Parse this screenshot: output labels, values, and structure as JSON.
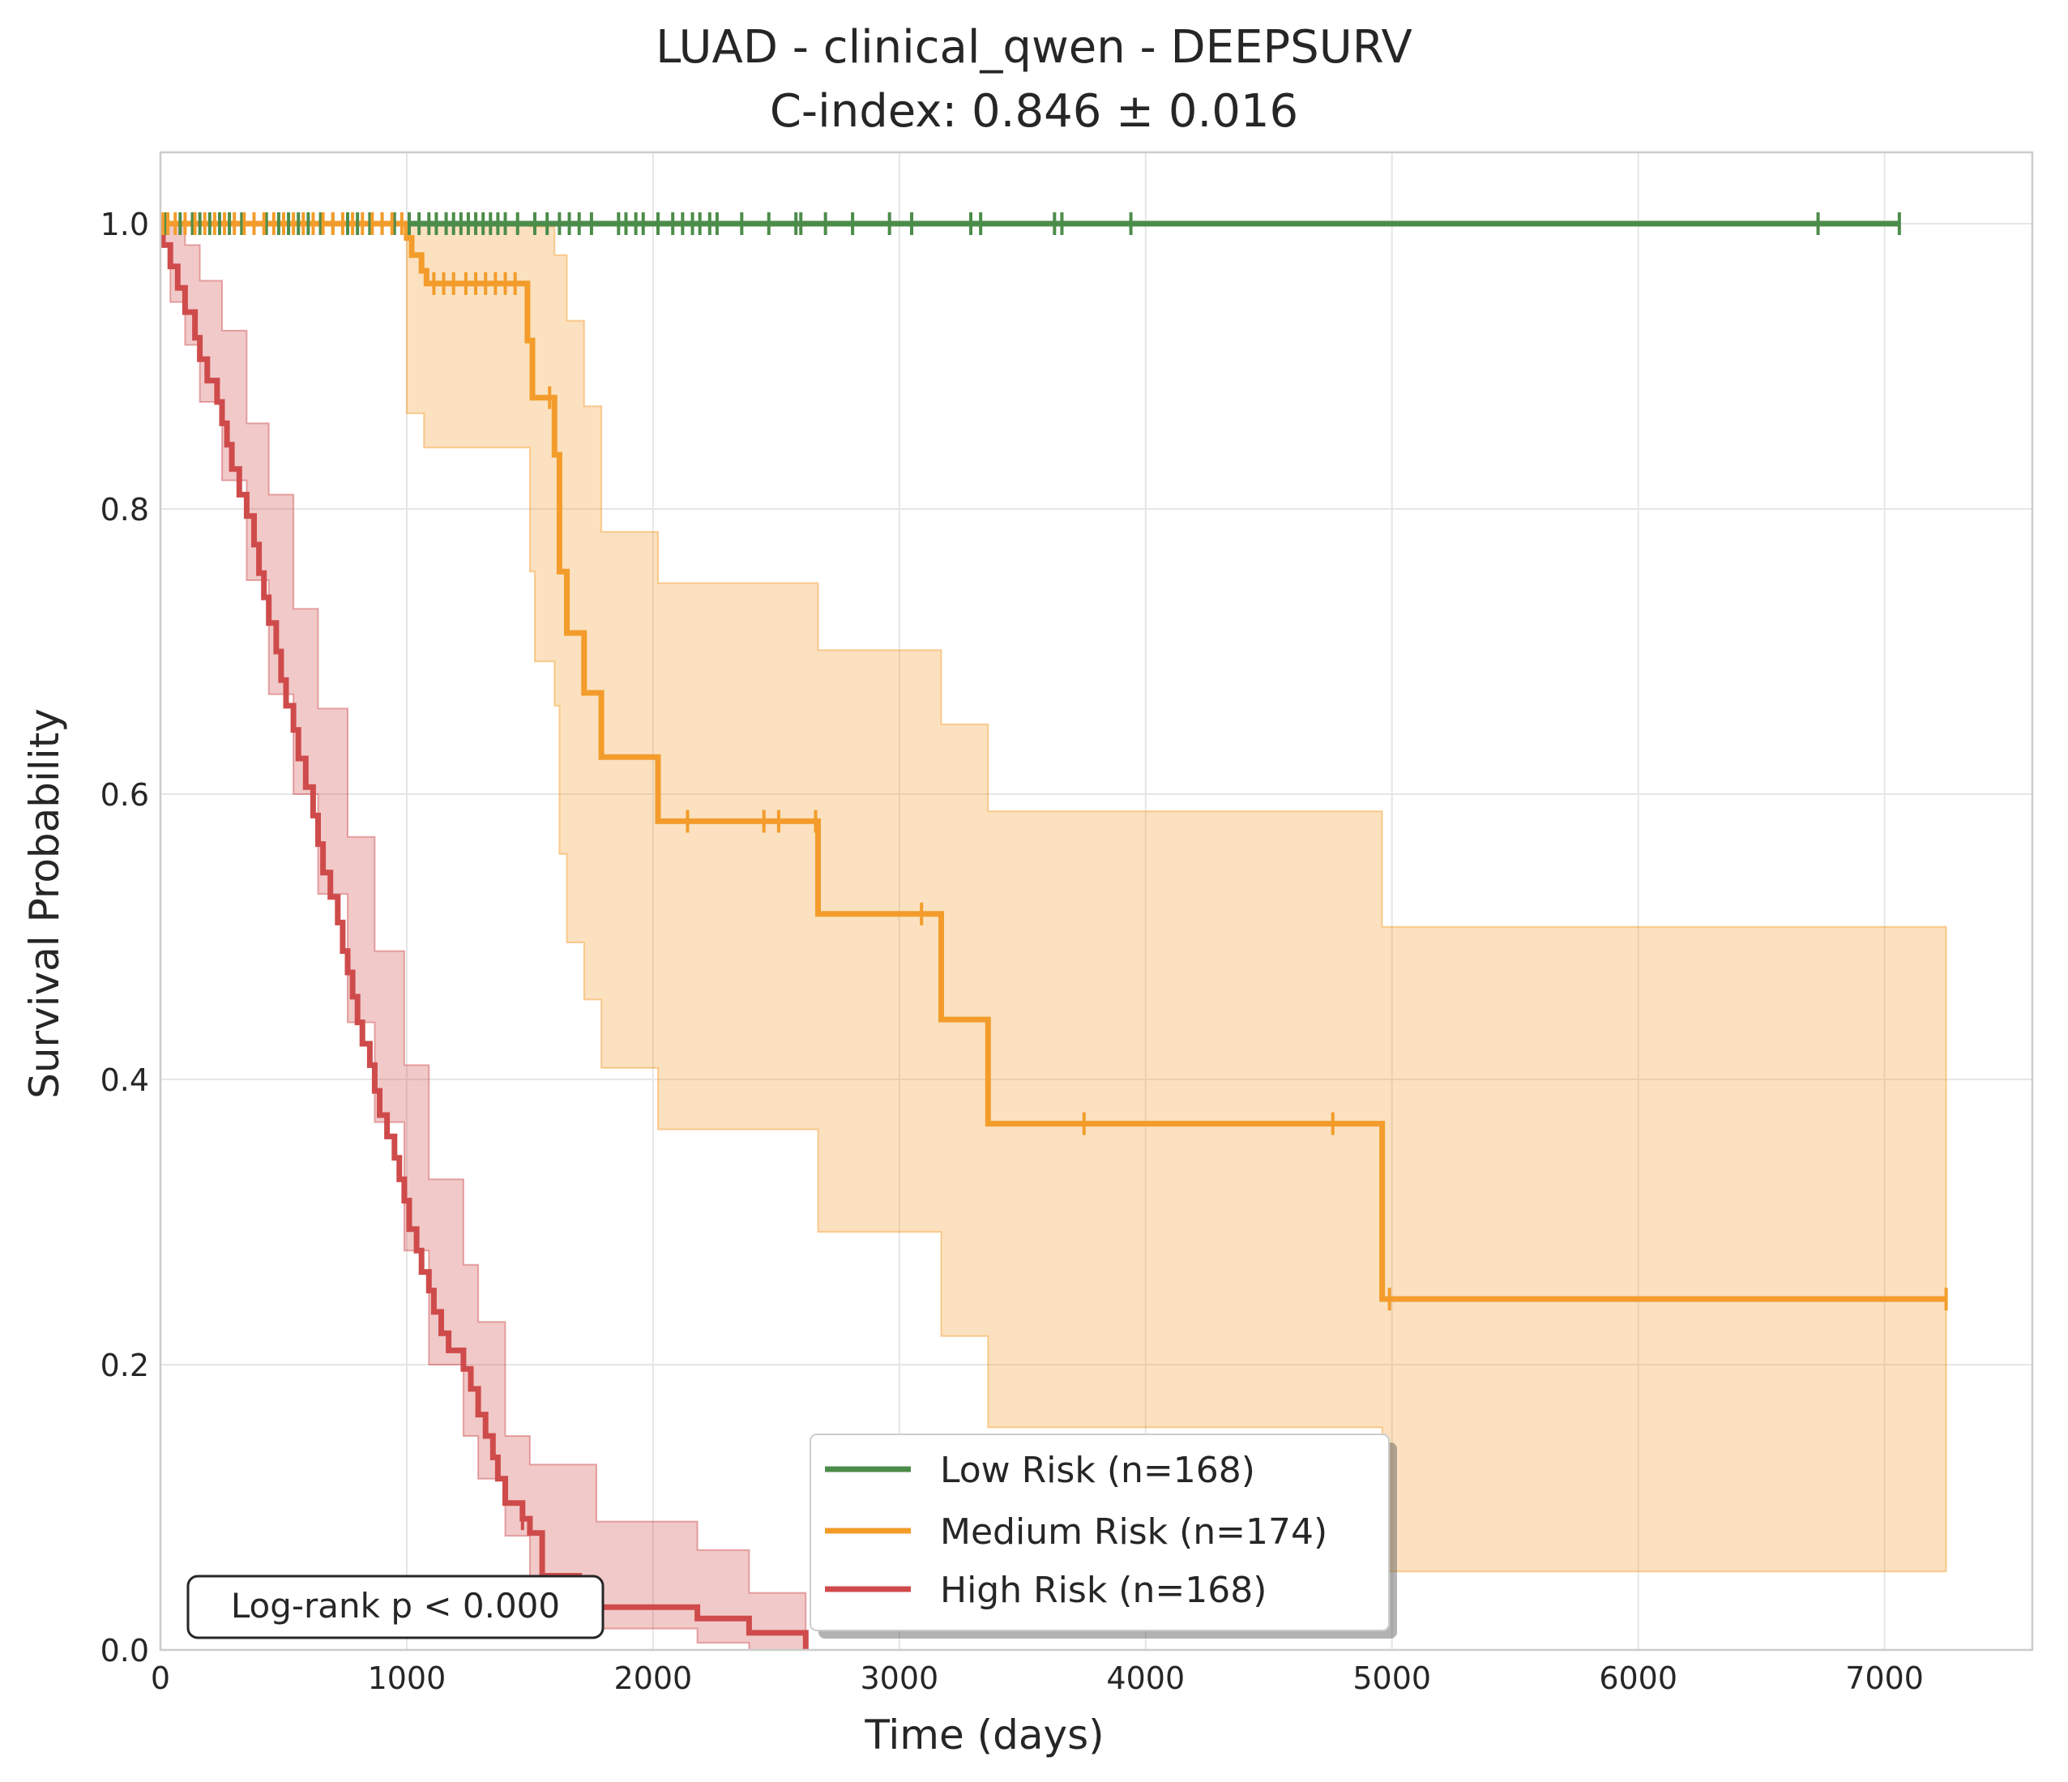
{
  "chart_data": {
    "type": "line",
    "subtype": "kaplan-meier",
    "title": "LUAD - clinical_qwen - DEEPSURV",
    "subtitle": "C-index: 0.846 ± 0.016",
    "xlabel": "Time (days)",
    "ylabel": "Survival Probability",
    "xlim": [
      0,
      7600
    ],
    "ylim": [
      0,
      1.05
    ],
    "xticks": [
      0,
      1000,
      2000,
      3000,
      4000,
      5000,
      6000,
      7000
    ],
    "yticks": [
      0.0,
      0.2,
      0.4,
      0.6,
      0.8,
      1.0
    ],
    "xtick_labels": [
      "0",
      "1000",
      "2000",
      "3000",
      "4000",
      "5000",
      "6000",
      "7000"
    ],
    "ytick_labels": [
      "0.0",
      "0.2",
      "0.4",
      "0.6",
      "0.8",
      "1.0"
    ],
    "grid": true,
    "legend_position": "bottom-center",
    "annotation": "Log-rank p < 0.000",
    "series": [
      {
        "name": "Low Risk (n=168)",
        "color": "#4c8c4a",
        "steps": [
          [
            0,
            1.0
          ],
          [
            7060,
            1.0
          ]
        ],
        "censored": [
          20,
          80,
          130,
          160,
          200,
          240,
          280,
          330,
          380,
          430,
          480,
          520,
          560,
          600,
          650,
          700,
          760,
          800,
          850,
          900,
          950,
          1010,
          1050,
          1090,
          1120,
          1160,
          1190,
          1220,
          1250,
          1280,
          1310,
          1340,
          1370,
          1400,
          1450,
          1520,
          1570,
          1620,
          1660,
          1700,
          1750,
          1860,
          1890,
          1930,
          1960,
          2020,
          2080,
          2120,
          2160,
          2190,
          2230,
          2260,
          2360,
          2470,
          2580,
          2600,
          2700,
          2810,
          2960,
          3050,
          3290,
          3330,
          3630,
          3660,
          3940,
          6730,
          7060
        ]
      },
      {
        "name": "Medium Risk (n=174)",
        "color": "#f39c2b",
        "steps": [
          [
            0,
            1.0
          ],
          [
            1000,
            0.99
          ],
          [
            1020,
            0.978
          ],
          [
            1060,
            0.967
          ],
          [
            1080,
            0.958
          ],
          [
            1490,
            0.918
          ],
          [
            1510,
            0.878
          ],
          [
            1600,
            0.838
          ],
          [
            1620,
            0.756
          ],
          [
            1650,
            0.713
          ],
          [
            1720,
            0.671
          ],
          [
            1790,
            0.626
          ],
          [
            2020,
            0.581
          ],
          [
            2670,
            0.516
          ],
          [
            3170,
            0.442
          ],
          [
            3360,
            0.369
          ],
          [
            4960,
            0.246
          ],
          [
            7250,
            0.246
          ]
        ],
        "ci_upper": [
          [
            0,
            1.0
          ],
          [
            1000,
            1.0
          ],
          [
            1500,
            0.998
          ],
          [
            1600,
            0.978
          ],
          [
            1650,
            0.932
          ],
          [
            1720,
            0.872
          ],
          [
            1790,
            0.784
          ],
          [
            2020,
            0.748
          ],
          [
            2670,
            0.701
          ],
          [
            3170,
            0.649
          ],
          [
            3360,
            0.588
          ],
          [
            4960,
            0.507
          ],
          [
            7250,
            0.507
          ]
        ],
        "ci_lower": [
          [
            0,
            1.0
          ],
          [
            1000,
            0.867
          ],
          [
            1070,
            0.843
          ],
          [
            1500,
            0.756
          ],
          [
            1520,
            0.693
          ],
          [
            1600,
            0.662
          ],
          [
            1620,
            0.558
          ],
          [
            1650,
            0.496
          ],
          [
            1720,
            0.456
          ],
          [
            1790,
            0.408
          ],
          [
            2020,
            0.365
          ],
          [
            2670,
            0.293
          ],
          [
            3170,
            0.22
          ],
          [
            3360,
            0.156
          ],
          [
            4960,
            0.055
          ],
          [
            7250,
            0.055
          ]
        ],
        "censored": [
          10,
          30,
          60,
          100,
          140,
          180,
          220,
          260,
          300,
          340,
          380,
          420,
          460,
          500,
          540,
          580,
          620,
          660,
          700,
          740,
          780,
          820,
          860,
          900,
          940,
          980,
          1110,
          1150,
          1190,
          1240,
          1280,
          1320,
          1360,
          1400,
          1440,
          1580,
          2140,
          2450,
          2510,
          2660,
          3090,
          3750,
          4760,
          4990,
          7250
        ]
      },
      {
        "name": "High Risk (n=168)",
        "color": "#cf4b4b",
        "steps": [
          [
            0,
            1.0
          ],
          [
            10,
            0.985
          ],
          [
            40,
            0.97
          ],
          [
            70,
            0.955
          ],
          [
            100,
            0.938
          ],
          [
            140,
            0.92
          ],
          [
            160,
            0.905
          ],
          [
            190,
            0.89
          ],
          [
            230,
            0.875
          ],
          [
            250,
            0.86
          ],
          [
            270,
            0.845
          ],
          [
            290,
            0.828
          ],
          [
            320,
            0.81
          ],
          [
            350,
            0.795
          ],
          [
            380,
            0.775
          ],
          [
            400,
            0.755
          ],
          [
            420,
            0.738
          ],
          [
            440,
            0.72
          ],
          [
            470,
            0.7
          ],
          [
            490,
            0.68
          ],
          [
            510,
            0.662
          ],
          [
            540,
            0.645
          ],
          [
            560,
            0.625
          ],
          [
            590,
            0.605
          ],
          [
            620,
            0.585
          ],
          [
            640,
            0.565
          ],
          [
            660,
            0.545
          ],
          [
            690,
            0.528
          ],
          [
            720,
            0.51
          ],
          [
            740,
            0.49
          ],
          [
            760,
            0.475
          ],
          [
            780,
            0.458
          ],
          [
            800,
            0.44
          ],
          [
            820,
            0.425
          ],
          [
            850,
            0.41
          ],
          [
            870,
            0.392
          ],
          [
            890,
            0.375
          ],
          [
            920,
            0.36
          ],
          [
            950,
            0.345
          ],
          [
            970,
            0.33
          ],
          [
            990,
            0.315
          ],
          [
            1010,
            0.295
          ],
          [
            1040,
            0.28
          ],
          [
            1060,
            0.265
          ],
          [
            1090,
            0.252
          ],
          [
            1110,
            0.237
          ],
          [
            1140,
            0.222
          ],
          [
            1170,
            0.21
          ],
          [
            1230,
            0.197
          ],
          [
            1260,
            0.183
          ],
          [
            1290,
            0.165
          ],
          [
            1320,
            0.15
          ],
          [
            1350,
            0.135
          ],
          [
            1370,
            0.12
          ],
          [
            1400,
            0.103
          ],
          [
            1470,
            0.092
          ],
          [
            1500,
            0.082
          ],
          [
            1550,
            0.052
          ],
          [
            1700,
            0.044
          ],
          [
            1770,
            0.03
          ],
          [
            2180,
            0.022
          ],
          [
            2390,
            0.012
          ],
          [
            2620,
            0.0
          ]
        ],
        "ci_upper": [
          [
            0,
            1.0
          ],
          [
            40,
            1.0
          ],
          [
            100,
            0.985
          ],
          [
            160,
            0.96
          ],
          [
            250,
            0.925
          ],
          [
            350,
            0.86
          ],
          [
            440,
            0.81
          ],
          [
            540,
            0.73
          ],
          [
            640,
            0.66
          ],
          [
            760,
            0.57
          ],
          [
            870,
            0.49
          ],
          [
            990,
            0.41
          ],
          [
            1090,
            0.33
          ],
          [
            1230,
            0.27
          ],
          [
            1290,
            0.23
          ],
          [
            1400,
            0.15
          ],
          [
            1500,
            0.13
          ],
          [
            1770,
            0.09
          ],
          [
            2180,
            0.07
          ],
          [
            2390,
            0.04
          ],
          [
            2620,
            0.04
          ]
        ],
        "ci_lower": [
          [
            0,
            0.985
          ],
          [
            40,
            0.945
          ],
          [
            100,
            0.915
          ],
          [
            160,
            0.875
          ],
          [
            250,
            0.82
          ],
          [
            350,
            0.75
          ],
          [
            440,
            0.67
          ],
          [
            540,
            0.6
          ],
          [
            640,
            0.53
          ],
          [
            760,
            0.44
          ],
          [
            870,
            0.37
          ],
          [
            990,
            0.28
          ],
          [
            1090,
            0.2
          ],
          [
            1230,
            0.15
          ],
          [
            1290,
            0.12
          ],
          [
            1400,
            0.08
          ],
          [
            1500,
            0.04
          ],
          [
            1770,
            0.015
          ],
          [
            2180,
            0.005
          ],
          [
            2390,
            0.0
          ],
          [
            2620,
            0.0
          ]
        ],
        "censored": [
          1470,
          1710
        ]
      }
    ]
  }
}
